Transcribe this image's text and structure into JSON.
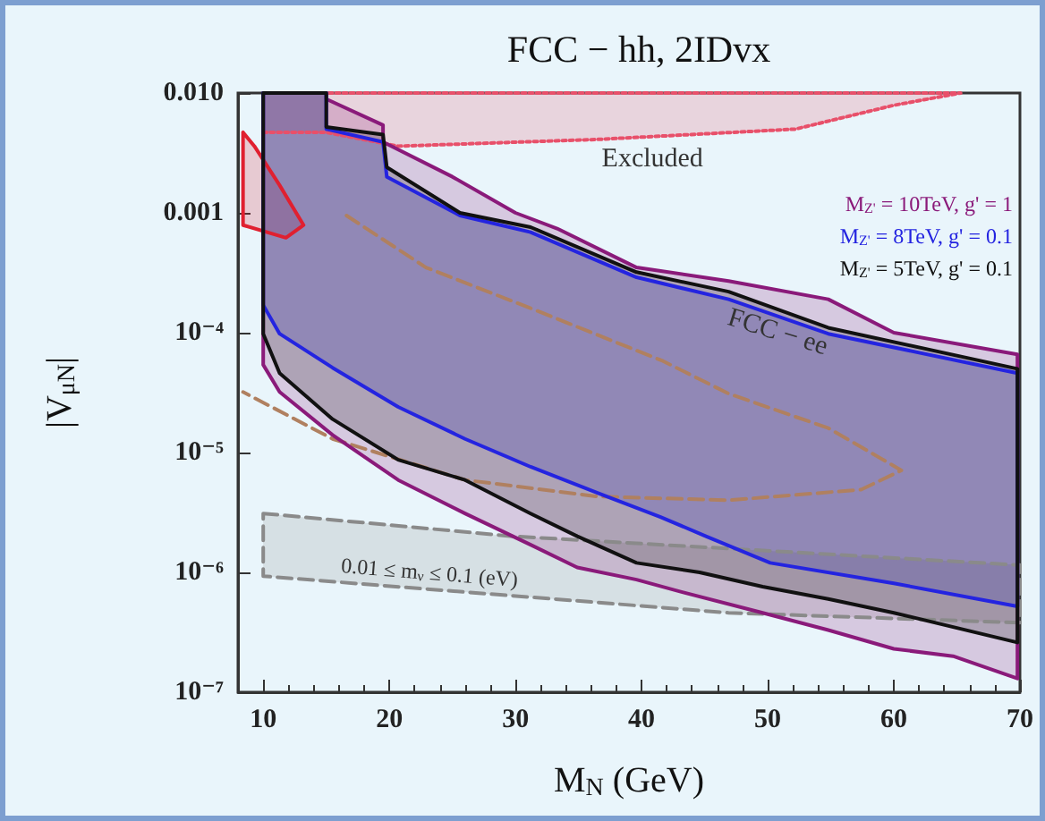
{
  "chart_data": {
    "type": "line",
    "title": "FCC − hh, 2IDvx",
    "xlabel": "M$_{N}$ (GeV)",
    "ylabel": "|V$_{μN}$|",
    "log": "y",
    "xlim": [
      8,
      70
    ],
    "xticks": [
      10,
      20,
      30,
      40,
      50,
      60,
      70
    ],
    "ylim": [
      1e-07,
      0.01
    ],
    "yticks": [
      {
        "value": 0.01,
        "label": "0.010"
      },
      {
        "value": 0.001,
        "label": "0.001"
      },
      {
        "value": 0.0001,
        "label": "10⁻⁴"
      },
      {
        "value": 1e-05,
        "label": "10⁻⁵"
      },
      {
        "value": 1e-06,
        "label": "10⁻⁶"
      },
      {
        "value": 1e-07,
        "label": "10⁻⁷"
      }
    ],
    "grid": false,
    "legend": false,
    "series": [
      {
        "type": "area",
        "color": "#e8506a",
        "line_style": "dotted",
        "x": [
          10,
          15,
          20.7,
          36.5,
          52.2,
          60,
          65.3,
          10
        ],
        "values": [
          0.0047,
          0.0047,
          0.0036,
          0.0041,
          0.005,
          0.0079,
          0.01,
          0.01
        ]
      },
      {
        "type": "area",
        "color": "#e02030",
        "x": [
          8.4,
          8.4,
          11.8,
          13.2,
          11.3,
          9.3,
          8.4
        ],
        "values": [
          0.0047,
          0.00079,
          0.00062,
          0.00079,
          0.0017,
          0.0036,
          0.0047
        ]
      },
      {
        "color": "#b08060",
        "line_style": "dashed",
        "x": [
          16.6,
          22.9,
          31.2,
          41.7,
          46.9,
          54.8,
          60.6,
          57.4,
          46.9,
          36.5,
          26,
          15.5,
          8.4
        ],
        "values": [
          0.00095,
          0.00035,
          0.00016,
          5.8e-05,
          3.1e-05,
          1.6e-05,
          7.1e-06,
          4.9e-06,
          4e-06,
          4.3e-06,
          5.9e-06,
          1.3e-05,
          3.2e-05
        ]
      },
      {
        "type": "area",
        "color": "#8a8a8a",
        "line_style": "dashed",
        "x": [
          10,
          29.8,
          70,
          70,
          46.9,
          10,
          10
        ],
        "values": [
          3.1e-06,
          2e-06,
          1.15e-06,
          3.8e-07,
          4.6e-07,
          9.3e-07,
          3.1e-06
        ]
      },
      {
        "name": "M$_{Z'}$ = 10TeV, g' = 1",
        "type": "area",
        "color": "#8a1a7a",
        "x": [
          10,
          11.3,
          15.5,
          20.7,
          26,
          31.2,
          34.9,
          39.6,
          43.3,
          49.6,
          54.8,
          60,
          64.7,
          69.8,
          69.8,
          60,
          54.8,
          46.9,
          39.6,
          33.3,
          30,
          25,
          19.5,
          19.5,
          15,
          15,
          10,
          10
        ],
        "values": [
          5.4e-05,
          3.2e-05,
          1.4e-05,
          5.9e-06,
          3.1e-06,
          1.7e-06,
          1.1e-06,
          8.7e-07,
          6.8e-07,
          4.6e-07,
          3.3e-07,
          2.3e-07,
          2e-07,
          1.3e-07,
          6.6e-05,
          0.0001,
          0.00019,
          0.00027,
          0.00035,
          0.00074,
          0.001,
          0.002,
          0.0039,
          0.0054,
          0.0089,
          0.01,
          0.01,
          5.4e-05
        ]
      },
      {
        "name": "M$_{Z'}$ = 8TeV, g' = 0.1",
        "type": "area",
        "color": "#2424e0",
        "x": [
          10,
          11.3,
          15.5,
          20.7,
          26,
          31.2,
          36.5,
          41.5,
          45.1,
          50.2,
          60,
          69.8,
          69.8,
          54.8,
          46.9,
          39.6,
          31.2,
          25.6,
          19.8,
          19.5,
          15,
          15,
          10,
          10
        ],
        "values": [
          0.00017,
          9.8e-05,
          5.1e-05,
          2.4e-05,
          1.3e-05,
          7.6e-06,
          4.6e-06,
          2.9e-06,
          2e-06,
          1.2e-06,
          8.1e-07,
          5.2e-07,
          4.6e-05,
          9.8e-05,
          0.00019,
          0.00029,
          0.00069,
          0.00095,
          0.002,
          0.0039,
          0.005,
          0.01,
          0.01,
          0.00017
        ]
      },
      {
        "name": "M$_{Z'}$ = 5TeV, g' = 0.1",
        "type": "area",
        "color": "#111111",
        "x": [
          10,
          11.3,
          15.5,
          20.7,
          26,
          31.2,
          34.9,
          39.6,
          44.6,
          49.6,
          54.8,
          60,
          69.8,
          69.8,
          54.8,
          46.9,
          39.6,
          31.2,
          25.6,
          19.8,
          19.5,
          15,
          15,
          10,
          10
        ],
        "values": [
          9.8e-05,
          4.6e-05,
          1.9e-05,
          8.7e-06,
          5.9e-06,
          3.1e-06,
          2e-06,
          1.2e-06,
          1e-06,
          7.6e-07,
          6e-07,
          4.6e-07,
          2.6e-07,
          5e-05,
          0.00011,
          0.00022,
          0.00032,
          0.00076,
          0.001,
          0.0024,
          0.0045,
          0.0052,
          0.01,
          0.01,
          9.8e-05
        ]
      }
    ],
    "annotations": [
      "Excluded",
      "FCC − ee",
      "0.01 ≤ m$_{ν}$ ≤ 0.1 (eV)"
    ]
  }
}
